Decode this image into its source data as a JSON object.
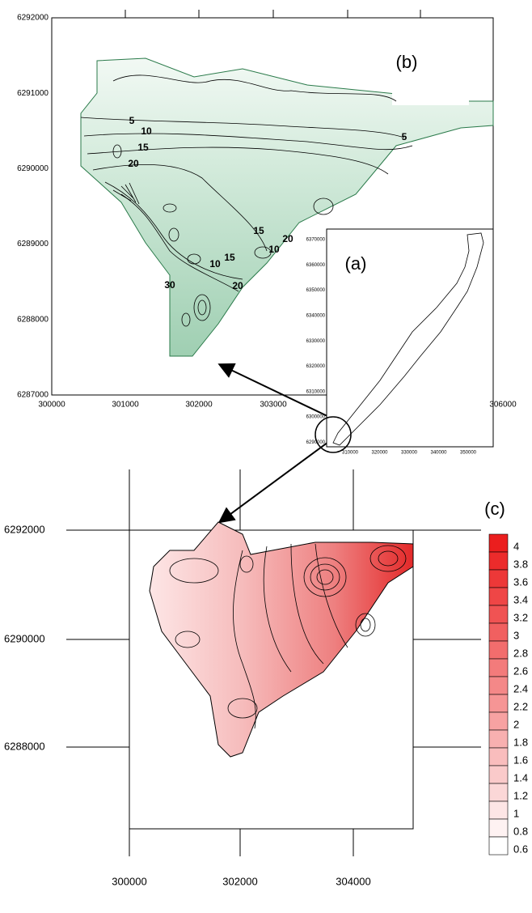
{
  "panel_b": {
    "label": "(b)",
    "x_ticks": [
      "300000",
      "301000",
      "302000",
      "303000",
      "306000"
    ],
    "y_ticks": [
      "6292000",
      "6291000",
      "6290000",
      "6289000",
      "6288000",
      "6287000"
    ],
    "contour_labels": [
      "5",
      "10",
      "15",
      "20",
      "5",
      "15",
      "20",
      "10",
      "10",
      "15",
      "20",
      "30"
    ]
  },
  "panel_a": {
    "label": "(a)",
    "x_ticks": [
      "310000",
      "320000",
      "330000",
      "340000",
      "350000"
    ],
    "y_ticks": [
      "6370000",
      "6360000",
      "6350000",
      "6340000",
      "6330000",
      "6320000",
      "6310000",
      "6300000",
      "6290000"
    ]
  },
  "panel_c": {
    "label": "(c)",
    "x_ticks": [
      "300000",
      "302000",
      "304000"
    ],
    "y_ticks": [
      "6292000",
      "6290000",
      "6288000"
    ],
    "colorbar_labels": [
      "4",
      "3.8",
      "3.6",
      "3.4",
      "3.2",
      "3",
      "2.8",
      "2.6",
      "2.4",
      "2.2",
      "2",
      "1.8",
      "1.6",
      "1.4",
      "1.2",
      "1",
      "0.8",
      "0.6"
    ]
  }
}
